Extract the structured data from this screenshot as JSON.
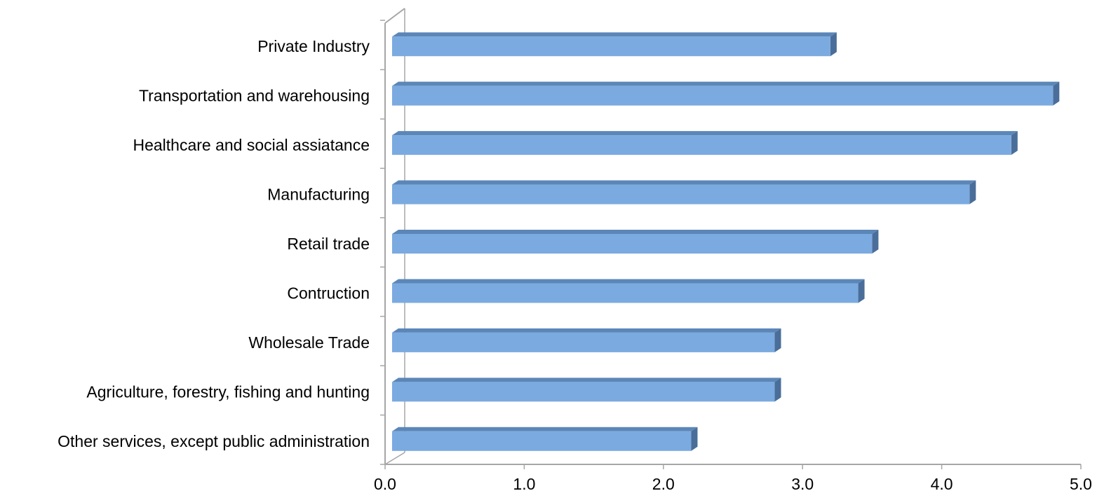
{
  "chart_data": {
    "type": "bar",
    "orientation": "horizontal",
    "style": "3d",
    "categories": [
      "Private Industry",
      "Transportation and warehousing",
      "Healthcare and social assiatance",
      "Manufacturing",
      "Retail trade",
      "Contruction",
      "Wholesale Trade",
      "Agriculture, forestry, fishing and hunting",
      "Other services, except public administration"
    ],
    "values": [
      3.2,
      4.8,
      4.5,
      4.2,
      3.5,
      3.4,
      2.8,
      2.8,
      2.2
    ],
    "xlim": [
      0,
      5
    ],
    "xticks": [
      "0.0",
      "1.0",
      "2.0",
      "3.0",
      "4.0",
      "5.0"
    ],
    "title": "",
    "xlabel": "",
    "ylabel": "",
    "grid": false,
    "legend": "none",
    "colors": {
      "bar_front": "#7BAAE0",
      "bar_top": "#5B86B8",
      "bar_side": "#4A6E99",
      "axis": "#A6A6A6"
    }
  }
}
